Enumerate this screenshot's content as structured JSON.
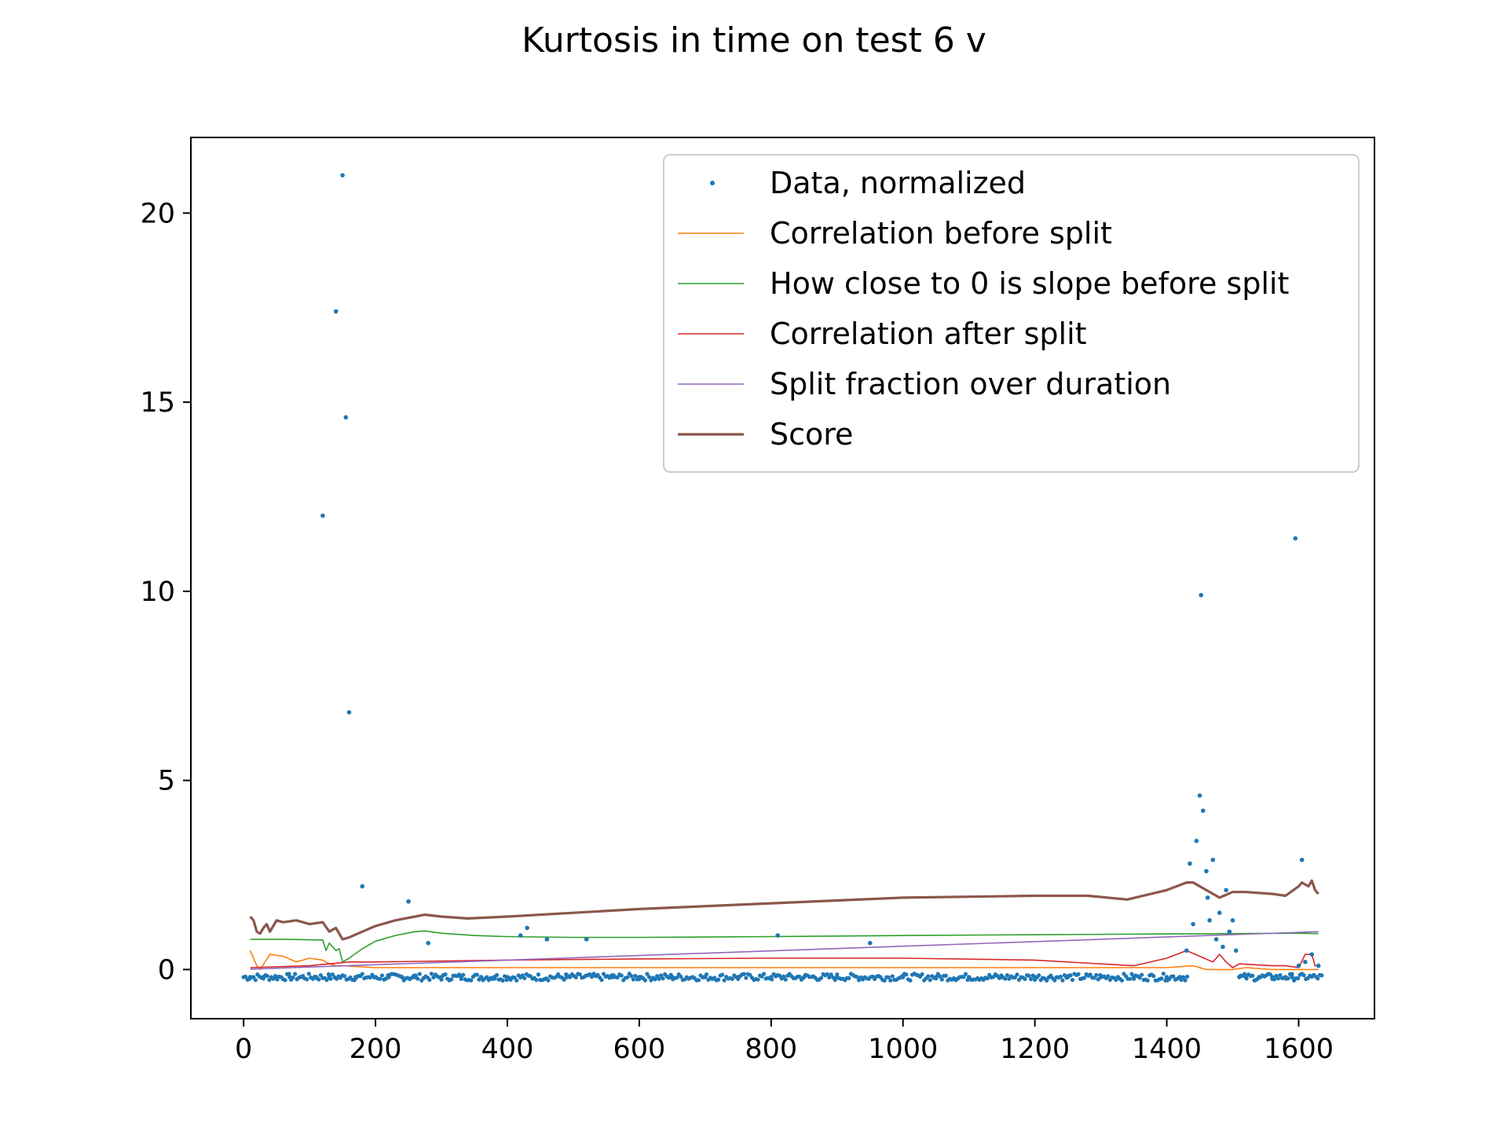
{
  "chart_data": {
    "type": "line",
    "title": "Kurtosis in time on test 6 v",
    "xlabel": "",
    "ylabel": "",
    "xlim": [
      -80,
      1715
    ],
    "ylim": [
      -1.3,
      22
    ],
    "x_ticks": [
      0,
      200,
      400,
      600,
      800,
      1000,
      1200,
      1400,
      1600
    ],
    "y_ticks": [
      0,
      5,
      10,
      15,
      20
    ],
    "grid": false,
    "legend_position": "top-right",
    "series": [
      {
        "name": "Data, normalized",
        "kind": "scatter",
        "color": "#1f77b4",
        "x": [
          10,
          30,
          50,
          70,
          90,
          110,
          120,
          130,
          140,
          145,
          150,
          155,
          160,
          170,
          180,
          200,
          220,
          240,
          250,
          260,
          280,
          300,
          330,
          360,
          380,
          400,
          420,
          430,
          460,
          490,
          520,
          560,
          600,
          650,
          700,
          750,
          800,
          810,
          850,
          900,
          950,
          1000,
          1050,
          1100,
          1150,
          1200,
          1250,
          1300,
          1350,
          1400,
          1420,
          1430,
          1435,
          1440,
          1445,
          1450,
          1452,
          1455,
          1460,
          1462,
          1465,
          1470,
          1475,
          1480,
          1485,
          1490,
          1495,
          1500,
          1505,
          1510,
          1520,
          1540,
          1560,
          1580,
          1590,
          1595,
          1600,
          1605,
          1610,
          1620,
          1630
        ],
        "y": [
          -0.2,
          -0.2,
          -0.2,
          -0.2,
          -0.2,
          -0.2,
          12,
          -0.2,
          17.4,
          -0.2,
          21,
          14.6,
          6.8,
          -0.2,
          2.2,
          -0.2,
          -0.2,
          -0.2,
          1.8,
          -0.2,
          0.7,
          -0.2,
          -0.2,
          -0.2,
          -0.2,
          -0.2,
          0.9,
          1.1,
          0.8,
          -0.2,
          0.8,
          -0.2,
          -0.2,
          -0.2,
          -0.2,
          -0.2,
          -0.2,
          0.9,
          -0.2,
          -0.2,
          0.7,
          -0.2,
          -0.2,
          -0.2,
          -0.2,
          -0.2,
          -0.2,
          -0.2,
          -0.2,
          -0.2,
          -0.2,
          0.5,
          2.8,
          1.2,
          3.4,
          4.6,
          9.9,
          4.2,
          2.6,
          1.9,
          1.3,
          2.9,
          0.8,
          1.5,
          0.6,
          2.1,
          1.0,
          1.3,
          0.5,
          -0.2,
          -0.2,
          -0.2,
          -0.2,
          -0.2,
          -0.2,
          11.4,
          0.1,
          2.9,
          0.2,
          0.4,
          0.1
        ]
      },
      {
        "name": "Correlation before split",
        "kind": "line",
        "color": "#ff7f0e",
        "x": [
          10,
          15,
          20,
          25,
          40,
          60,
          80,
          100,
          120,
          130,
          140,
          150,
          200,
          300,
          400,
          500,
          600,
          800,
          1000,
          1200,
          1400,
          1440,
          1460,
          1480,
          1500,
          1520,
          1560,
          1600,
          1620,
          1630
        ],
        "y": [
          0.5,
          0.3,
          0.1,
          0.0,
          0.4,
          0.35,
          0.2,
          0.3,
          0.25,
          0.15,
          0.1,
          0.1,
          0.05,
          0.05,
          0.05,
          0.05,
          0.05,
          0.05,
          0.05,
          0.05,
          0.05,
          0.1,
          0.0,
          0.0,
          0.0,
          0.05,
          0.0,
          0.0,
          0.0,
          0.0
        ]
      },
      {
        "name": "How close to 0 is slope before split",
        "kind": "line",
        "color": "#2ca02c",
        "x": [
          10,
          60,
          120,
          125,
          130,
          140,
          145,
          150,
          160,
          180,
          200,
          230,
          260,
          275,
          300,
          350,
          400,
          500,
          600,
          800,
          1000,
          1200,
          1400,
          1500,
          1600,
          1630
        ],
        "y": [
          0.8,
          0.8,
          0.78,
          0.5,
          0.7,
          0.5,
          0.55,
          0.2,
          0.3,
          0.55,
          0.75,
          0.9,
          1.0,
          1.02,
          0.96,
          0.9,
          0.87,
          0.85,
          0.85,
          0.87,
          0.9,
          0.92,
          0.94,
          0.95,
          0.96,
          0.95
        ]
      },
      {
        "name": "Correlation after split",
        "kind": "line",
        "color": "#d62728",
        "x": [
          10,
          100,
          160,
          200,
          400,
          600,
          800,
          1000,
          1200,
          1350,
          1400,
          1430,
          1450,
          1470,
          1480,
          1490,
          1500,
          1510,
          1560,
          1580,
          1600,
          1610,
          1620,
          1625,
          1630
        ],
        "y": [
          0.05,
          0.1,
          0.2,
          0.2,
          0.25,
          0.28,
          0.3,
          0.3,
          0.25,
          0.1,
          0.3,
          0.5,
          0.35,
          0.2,
          0.4,
          0.2,
          0.05,
          0.15,
          0.1,
          0.1,
          0.05,
          0.4,
          0.4,
          0.1,
          0.1
        ]
      },
      {
        "name": "Split fraction over duration",
        "kind": "line",
        "color": "#9467bd",
        "x": [
          10,
          1630
        ],
        "y": [
          0.01,
          1.0
        ]
      },
      {
        "name": "Score",
        "kind": "line",
        "color": "#8c564b",
        "x": [
          10,
          15,
          20,
          25,
          30,
          35,
          40,
          50,
          60,
          80,
          100,
          120,
          130,
          140,
          150,
          160,
          180,
          200,
          230,
          260,
          275,
          300,
          340,
          400,
          500,
          600,
          800,
          1000,
          1200,
          1280,
          1340,
          1400,
          1430,
          1440,
          1460,
          1480,
          1500,
          1520,
          1560,
          1580,
          1600,
          1605,
          1615,
          1620,
          1625,
          1630
        ],
        "y": [
          1.4,
          1.3,
          1.0,
          0.95,
          1.1,
          1.2,
          1.0,
          1.3,
          1.25,
          1.3,
          1.2,
          1.25,
          1.0,
          1.1,
          0.8,
          0.85,
          1.0,
          1.15,
          1.3,
          1.4,
          1.45,
          1.4,
          1.35,
          1.4,
          1.5,
          1.6,
          1.75,
          1.9,
          1.95,
          1.95,
          1.85,
          2.1,
          2.3,
          2.3,
          2.1,
          1.9,
          2.05,
          2.05,
          2.0,
          1.95,
          2.2,
          2.3,
          2.2,
          2.35,
          2.1,
          2.0
        ]
      }
    ]
  }
}
